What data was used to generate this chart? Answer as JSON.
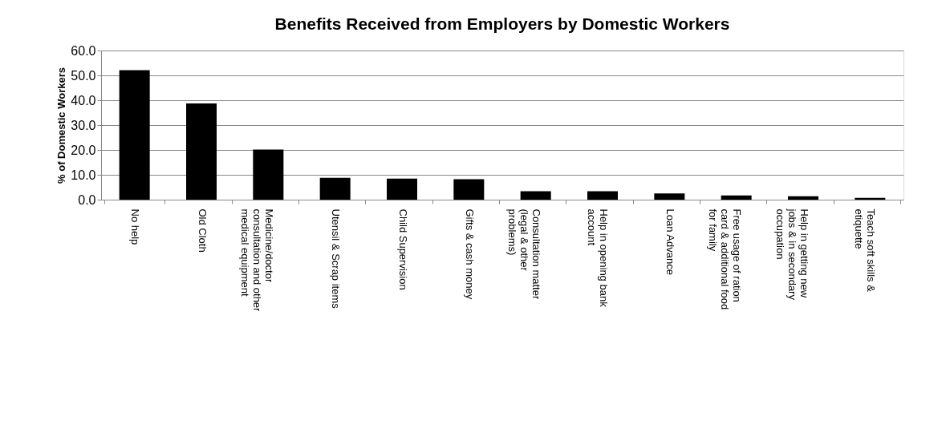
{
  "chart_data": {
    "type": "bar",
    "title": "Benefits Received from Employers by Domestic Workers",
    "ylabel": "% of Domestic Workers",
    "categories": [
      "No help",
      "Old Cloth",
      "Medicine/doctor consultation and other medical equipment",
      "Utensil & Scrap items",
      "Child Supervision",
      "Gifts & cash money",
      "Consultation matter (legal & other problems)",
      "Help in opening bank account",
      "Loan Advance",
      "Free usage of ration card & additional food for family",
      "Help in getting new jobs & in secondary occupation",
      "Teach soft skills & etiquette"
    ],
    "values": [
      52.1,
      38.7,
      20.2,
      8.8,
      8.5,
      8.2,
      3.4,
      3.4,
      2.5,
      1.7,
      1.4,
      0.7
    ],
    "color": "#000000",
    "ylim": [
      0,
      60
    ],
    "yticks": [
      {
        "value": 0,
        "label": "0.0"
      },
      {
        "value": 10,
        "label": "10.0"
      },
      {
        "value": 20,
        "label": "20.0"
      },
      {
        "value": 30,
        "label": "30.0"
      },
      {
        "value": 40,
        "label": "40.0"
      },
      {
        "value": 50,
        "label": "50.0"
      },
      {
        "value": 60,
        "label": "60.0"
      }
    ],
    "grid": "y"
  }
}
